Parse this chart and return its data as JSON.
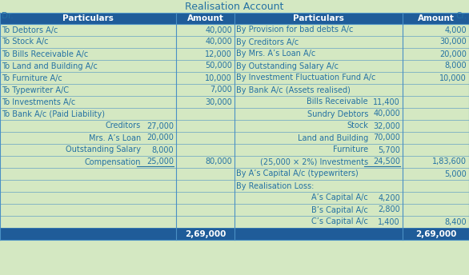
{
  "title": "Realisation Account",
  "bg_color": "#d4e8c2",
  "header_bg": "#1f5c99",
  "header_fg": "#ffffff",
  "cell_fg": "#2471a3",
  "border_color": "#4a90c4",
  "dr_label": "Dr.",
  "cr_label": "Cr.",
  "left_headers": [
    "Particulars",
    "Amount"
  ],
  "right_headers": [
    "Particulars",
    "Amount"
  ],
  "left_rows": [
    {
      "particulars": "To Debtors A/c",
      "sub": false,
      "subamt": "",
      "amount": "40,000",
      "underline": false
    },
    {
      "particulars": "To Stock A/c",
      "sub": false,
      "subamt": "",
      "amount": "40,000",
      "underline": false
    },
    {
      "particulars": "To Bills Receivable A/c",
      "sub": false,
      "subamt": "",
      "amount": "12,000",
      "underline": false
    },
    {
      "particulars": "To Land and Building A/c",
      "sub": false,
      "subamt": "",
      "amount": "50,000",
      "underline": false
    },
    {
      "particulars": "To Furniture A/c",
      "sub": false,
      "subamt": "",
      "amount": "10,000",
      "underline": false
    },
    {
      "particulars": "To Typewriter A/C",
      "sub": false,
      "subamt": "",
      "amount": "7,000",
      "underline": false
    },
    {
      "particulars": "To Investments A/c",
      "sub": false,
      "subamt": "",
      "amount": "30,000",
      "underline": false
    },
    {
      "particulars": "To Bank A/c (Paid Liability)",
      "sub": false,
      "subamt": "",
      "amount": "",
      "underline": false
    },
    {
      "particulars": "Creditors",
      "sub": true,
      "subamt": "27,000",
      "amount": "",
      "underline": false
    },
    {
      "particulars": "Mrs. A’s Loan",
      "sub": true,
      "subamt": "20,000",
      "amount": "",
      "underline": false
    },
    {
      "particulars": "Outstanding Salary",
      "sub": true,
      "subamt": "8,000",
      "amount": "",
      "underline": false
    },
    {
      "particulars": "Compensation",
      "sub": true,
      "subamt": "25,000",
      "amount": "80,000",
      "underline": true
    },
    {
      "particulars": "",
      "sub": false,
      "subamt": "",
      "amount": "",
      "underline": false
    },
    {
      "particulars": "",
      "sub": false,
      "subamt": "",
      "amount": "",
      "underline": false
    },
    {
      "particulars": "",
      "sub": false,
      "subamt": "",
      "amount": "",
      "underline": false
    },
    {
      "particulars": "",
      "sub": false,
      "subamt": "",
      "amount": "",
      "underline": false
    },
    {
      "particulars": "",
      "sub": false,
      "subamt": "",
      "amount": "",
      "underline": false
    }
  ],
  "right_rows": [
    {
      "particulars": "By Provision for bad debts A/c",
      "sub": false,
      "subamt": "",
      "amount": "4,000",
      "underline": false
    },
    {
      "particulars": "By Creditors A/c",
      "sub": false,
      "subamt": "",
      "amount": "30,000",
      "underline": false
    },
    {
      "particulars": "By Mrs. A’s Loan A/c",
      "sub": false,
      "subamt": "",
      "amount": "20,000",
      "underline": false
    },
    {
      "particulars": "By Outstanding Salary A/c",
      "sub": false,
      "subamt": "",
      "amount": "8,000",
      "underline": false
    },
    {
      "particulars": "By Investment Fluctuation Fund A/c",
      "sub": false,
      "subamt": "",
      "amount": "10,000",
      "underline": false
    },
    {
      "particulars": "By Bank A/c (Assets realised)",
      "sub": false,
      "subamt": "",
      "amount": "",
      "underline": false
    },
    {
      "particulars": "Bills Receivable",
      "sub": true,
      "subamt": "11,400",
      "amount": "",
      "underline": false
    },
    {
      "particulars": "Sundry Debtors",
      "sub": true,
      "subamt": "40,000",
      "amount": "",
      "underline": false
    },
    {
      "particulars": "Stock",
      "sub": true,
      "subamt": "32,000",
      "amount": "",
      "underline": false
    },
    {
      "particulars": "Land and Building",
      "sub": true,
      "subamt": "70,000",
      "amount": "",
      "underline": false
    },
    {
      "particulars": "Furniture",
      "sub": true,
      "subamt": "5,700",
      "amount": "",
      "underline": false
    },
    {
      "particulars": "(25,000 × 2%) Investments",
      "sub": true,
      "subamt": "24,500",
      "amount": "1,83,600",
      "underline": true
    },
    {
      "particulars": "By A’s Capital A/c (typewriters)",
      "sub": false,
      "subamt": "",
      "amount": "5,000",
      "underline": false
    },
    {
      "particulars": "By Realisation Loss:",
      "sub": false,
      "subamt": "",
      "amount": "",
      "underline": false
    },
    {
      "particulars": "A’s Capital A/c",
      "sub": true,
      "subamt": "4,200",
      "amount": "",
      "underline": false
    },
    {
      "particulars": "B’s Capital A/c",
      "sub": true,
      "subamt": "2,800",
      "amount": "",
      "underline": false
    },
    {
      "particulars": "C’s Capital A/c",
      "sub": true,
      "subamt": "1,400",
      "amount": "8,400",
      "underline": false
    }
  ],
  "left_total": "2,69,000",
  "right_total": "2,69,000"
}
